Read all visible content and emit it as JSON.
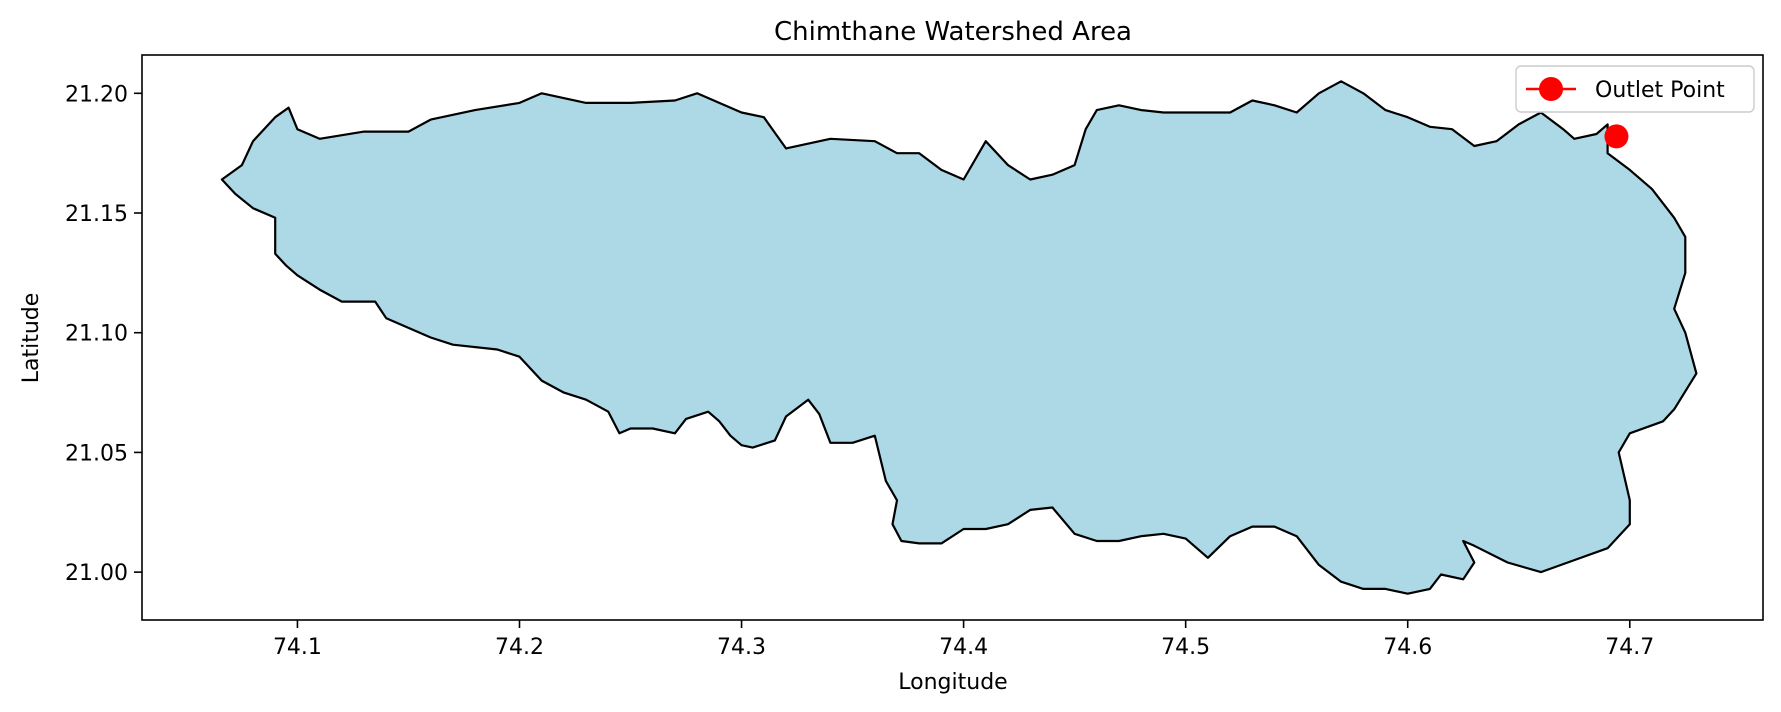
{
  "chart_data": {
    "type": "map",
    "title": "Chimthane Watershed Area",
    "xlabel": "Longitude",
    "ylabel": "Latitude",
    "xlim": [
      74.03,
      74.76
    ],
    "ylim": [
      20.98,
      21.216
    ],
    "xticks": [
      74.1,
      74.2,
      74.3,
      74.4,
      74.5,
      74.6,
      74.7
    ],
    "xtick_labels": [
      "74.1",
      "74.2",
      "74.3",
      "74.4",
      "74.5",
      "74.6",
      "74.7"
    ],
    "yticks": [
      21.0,
      21.05,
      21.1,
      21.15,
      21.2
    ],
    "ytick_labels": [
      "21.00",
      "21.05",
      "21.10",
      "21.15",
      "21.20"
    ],
    "grid": false,
    "legend_placement": "top-right",
    "watershed": {
      "fill_color": "#add8e6",
      "edge_color": "#000000",
      "boundary": [
        [
          74.066,
          21.164
        ],
        [
          74.075,
          21.17
        ],
        [
          74.08,
          21.18
        ],
        [
          74.09,
          21.19
        ],
        [
          74.096,
          21.194
        ],
        [
          74.1,
          21.185
        ],
        [
          74.11,
          21.181
        ],
        [
          74.13,
          21.184
        ],
        [
          74.15,
          21.184
        ],
        [
          74.16,
          21.189
        ],
        [
          74.18,
          21.193
        ],
        [
          74.2,
          21.196
        ],
        [
          74.21,
          21.2
        ],
        [
          74.23,
          21.196
        ],
        [
          74.25,
          21.196
        ],
        [
          74.27,
          21.197
        ],
        [
          74.28,
          21.2
        ],
        [
          74.29,
          21.196
        ],
        [
          74.3,
          21.192
        ],
        [
          74.31,
          21.19
        ],
        [
          74.32,
          21.177
        ],
        [
          74.34,
          21.181
        ],
        [
          74.36,
          21.18
        ],
        [
          74.37,
          21.175
        ],
        [
          74.38,
          21.175
        ],
        [
          74.39,
          21.168
        ],
        [
          74.4,
          21.164
        ],
        [
          74.41,
          21.18
        ],
        [
          74.42,
          21.17
        ],
        [
          74.43,
          21.164
        ],
        [
          74.44,
          21.166
        ],
        [
          74.45,
          21.17
        ],
        [
          74.455,
          21.185
        ],
        [
          74.46,
          21.193
        ],
        [
          74.47,
          21.195
        ],
        [
          74.48,
          21.193
        ],
        [
          74.49,
          21.192
        ],
        [
          74.51,
          21.192
        ],
        [
          74.52,
          21.192
        ],
        [
          74.53,
          21.197
        ],
        [
          74.54,
          21.195
        ],
        [
          74.55,
          21.192
        ],
        [
          74.56,
          21.2
        ],
        [
          74.57,
          21.205
        ],
        [
          74.58,
          21.2
        ],
        [
          74.59,
          21.193
        ],
        [
          74.6,
          21.19
        ],
        [
          74.61,
          21.186
        ],
        [
          74.62,
          21.185
        ],
        [
          74.63,
          21.178
        ],
        [
          74.64,
          21.18
        ],
        [
          74.65,
          21.187
        ],
        [
          74.66,
          21.192
        ],
        [
          74.67,
          21.185
        ],
        [
          74.675,
          21.181
        ],
        [
          74.685,
          21.183
        ],
        [
          74.69,
          21.187
        ],
        [
          74.69,
          21.175
        ],
        [
          74.7,
          21.168
        ],
        [
          74.71,
          21.16
        ],
        [
          74.72,
          21.148
        ],
        [
          74.725,
          21.14
        ],
        [
          74.725,
          21.125
        ],
        [
          74.72,
          21.11
        ],
        [
          74.725,
          21.1
        ],
        [
          74.73,
          21.083
        ],
        [
          74.72,
          21.068
        ],
        [
          74.715,
          21.063
        ],
        [
          74.7,
          21.058
        ],
        [
          74.695,
          21.05
        ],
        [
          74.7,
          21.03
        ],
        [
          74.7,
          21.02
        ],
        [
          74.69,
          21.01
        ],
        [
          74.675,
          21.005
        ],
        [
          74.66,
          21.0
        ],
        [
          74.645,
          21.004
        ],
        [
          74.63,
          21.011
        ],
        [
          74.625,
          21.013
        ],
        [
          74.63,
          21.004
        ],
        [
          74.625,
          20.997
        ],
        [
          74.615,
          20.999
        ],
        [
          74.61,
          20.993
        ],
        [
          74.6,
          20.991
        ],
        [
          74.59,
          20.993
        ],
        [
          74.58,
          20.993
        ],
        [
          74.57,
          20.996
        ],
        [
          74.56,
          21.003
        ],
        [
          74.55,
          21.015
        ],
        [
          74.54,
          21.019
        ],
        [
          74.53,
          21.019
        ],
        [
          74.52,
          21.015
        ],
        [
          74.51,
          21.006
        ],
        [
          74.5,
          21.014
        ],
        [
          74.49,
          21.016
        ],
        [
          74.48,
          21.015
        ],
        [
          74.47,
          21.013
        ],
        [
          74.46,
          21.013
        ],
        [
          74.45,
          21.016
        ],
        [
          74.44,
          21.027
        ],
        [
          74.43,
          21.026
        ],
        [
          74.42,
          21.02
        ],
        [
          74.41,
          21.018
        ],
        [
          74.4,
          21.018
        ],
        [
          74.39,
          21.012
        ],
        [
          74.38,
          21.012
        ],
        [
          74.372,
          21.013
        ],
        [
          74.368,
          21.02
        ],
        [
          74.37,
          21.03
        ],
        [
          74.365,
          21.038
        ],
        [
          74.36,
          21.057
        ],
        [
          74.35,
          21.054
        ],
        [
          74.34,
          21.054
        ],
        [
          74.335,
          21.066
        ],
        [
          74.33,
          21.072
        ],
        [
          74.32,
          21.065
        ],
        [
          74.315,
          21.055
        ],
        [
          74.305,
          21.052
        ],
        [
          74.3,
          21.053
        ],
        [
          74.295,
          21.057
        ],
        [
          74.29,
          21.063
        ],
        [
          74.285,
          21.067
        ],
        [
          74.275,
          21.064
        ],
        [
          74.27,
          21.058
        ],
        [
          74.26,
          21.06
        ],
        [
          74.25,
          21.06
        ],
        [
          74.245,
          21.058
        ],
        [
          74.24,
          21.067
        ],
        [
          74.23,
          21.072
        ],
        [
          74.22,
          21.075
        ],
        [
          74.21,
          21.08
        ],
        [
          74.2,
          21.09
        ],
        [
          74.19,
          21.093
        ],
        [
          74.17,
          21.095
        ],
        [
          74.16,
          21.098
        ],
        [
          74.15,
          21.102
        ],
        [
          74.14,
          21.106
        ],
        [
          74.135,
          21.113
        ],
        [
          74.12,
          21.113
        ],
        [
          74.11,
          21.118
        ],
        [
          74.1,
          21.124
        ],
        [
          74.095,
          21.128
        ],
        [
          74.09,
          21.133
        ],
        [
          74.09,
          21.14
        ],
        [
          74.09,
          21.148
        ],
        [
          74.08,
          21.152
        ],
        [
          74.072,
          21.158
        ],
        [
          74.066,
          21.164
        ]
      ]
    },
    "outlet_point": {
      "lon": 74.694,
      "lat": 21.182,
      "color": "#ff0000",
      "label": "Outlet Point"
    }
  }
}
